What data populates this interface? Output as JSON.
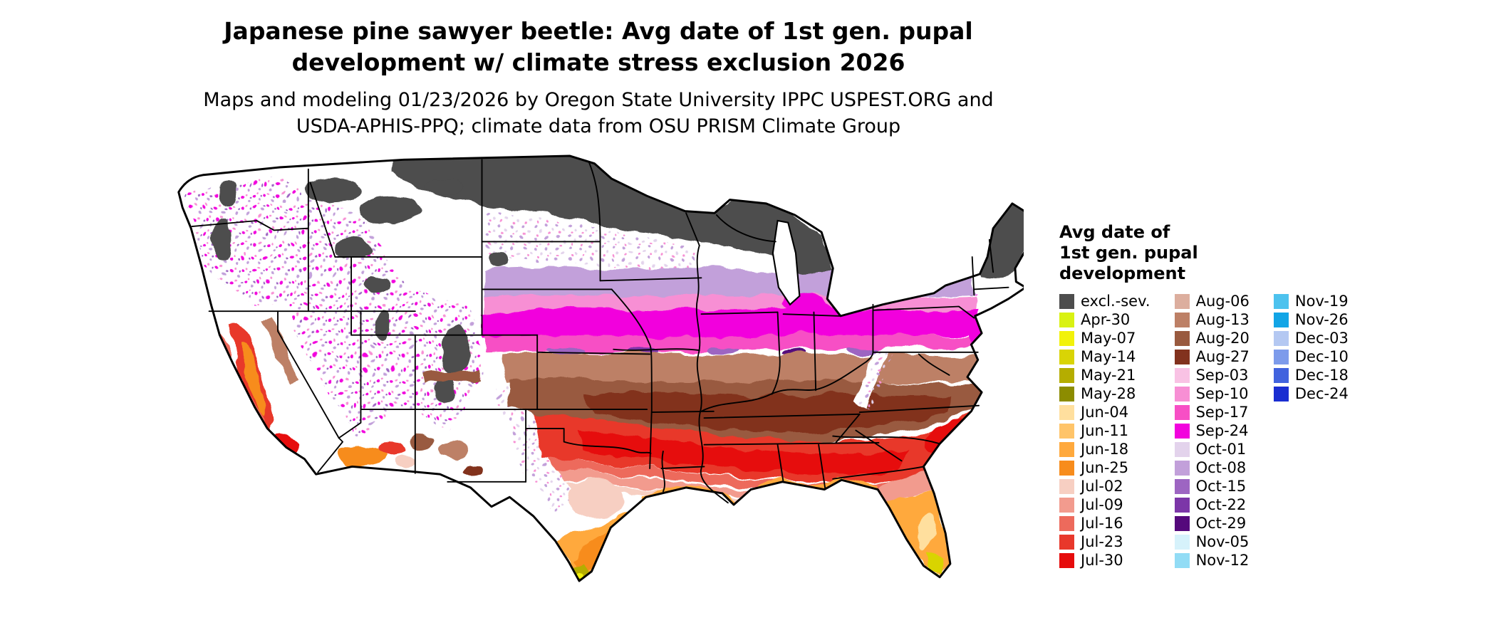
{
  "title": {
    "line1": "Japanese pine sawyer beetle: Avg date of 1st gen. pupal",
    "line2": "development w/ climate stress exclusion 2026"
  },
  "subtitle": {
    "line1": "Maps and modeling 01/23/2026 by Oregon State University IPPC USPEST.ORG and",
    "line2": "USDA-APHIS-PPQ; climate data from OSU PRISM Climate Group"
  },
  "legend": {
    "title_line1": "Avg date of",
    "title_line2": "1st gen. pupal",
    "title_line3": "development",
    "columns": [
      {
        "items": [
          {
            "label": "excl.-sev.",
            "color": "#4d4d4d"
          },
          {
            "label": "Apr-30",
            "color": "#d9f212"
          },
          {
            "label": "May-07",
            "color": "#f2f20a"
          },
          {
            "label": "May-14",
            "color": "#d9d405"
          },
          {
            "label": "May-21",
            "color": "#b5ad00"
          },
          {
            "label": "May-28",
            "color": "#8c8c00"
          },
          {
            "label": "Jun-04",
            "color": "#ffdf9e"
          },
          {
            "label": "Jun-11",
            "color": "#ffc469"
          },
          {
            "label": "Jun-18",
            "color": "#ffa93d"
          },
          {
            "label": "Jun-25",
            "color": "#f78c1c"
          },
          {
            "label": "Jul-02",
            "color": "#f7cfc2"
          },
          {
            "label": "Jul-09",
            "color": "#f29b8e"
          },
          {
            "label": "Jul-16",
            "color": "#ed6a5c"
          },
          {
            "label": "Jul-23",
            "color": "#e8382b"
          },
          {
            "label": "Jul-30",
            "color": "#e60c0c"
          }
        ]
      },
      {
        "items": [
          {
            "label": "Aug-06",
            "color": "#dcae9e"
          },
          {
            "label": "Aug-13",
            "color": "#bd8066"
          },
          {
            "label": "Aug-20",
            "color": "#995a3f"
          },
          {
            "label": "Aug-27",
            "color": "#82321e"
          },
          {
            "label": "Sep-03",
            "color": "#f9c2e4"
          },
          {
            "label": "Sep-10",
            "color": "#f78fd4"
          },
          {
            "label": "Sep-17",
            "color": "#f74fc5"
          },
          {
            "label": "Sep-24",
            "color": "#f203dd"
          },
          {
            "label": "Oct-01",
            "color": "#e3d3ec"
          },
          {
            "label": "Oct-08",
            "color": "#c2a0da"
          },
          {
            "label": "Oct-15",
            "color": "#9d65c2"
          },
          {
            "label": "Oct-22",
            "color": "#7c36a8"
          },
          {
            "label": "Oct-29",
            "color": "#55097c"
          },
          {
            "label": "Nov-05",
            "color": "#d6f2fb"
          },
          {
            "label": "Nov-12",
            "color": "#92dcf5"
          }
        ]
      },
      {
        "items": [
          {
            "label": "Nov-19",
            "color": "#4dc2ee"
          },
          {
            "label": "Nov-26",
            "color": "#12a5e6"
          },
          {
            "label": "Dec-03",
            "color": "#b4c8f2"
          },
          {
            "label": "Dec-10",
            "color": "#7d9beb"
          },
          {
            "label": "Dec-18",
            "color": "#4163de"
          },
          {
            "label": "Dec-24",
            "color": "#1a2ed1"
          }
        ]
      }
    ]
  }
}
